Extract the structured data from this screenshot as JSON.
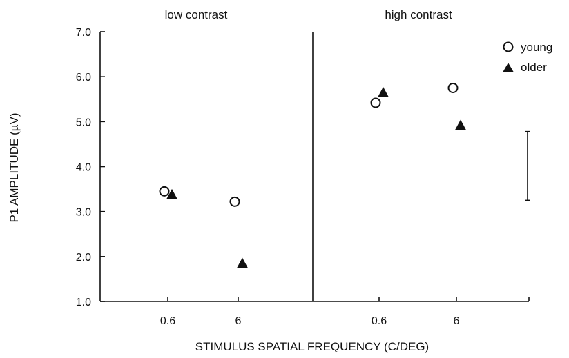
{
  "chart_data": {
    "type": "scatter",
    "xlabel": "STIMULUS SPATIAL FREQUENCY  (C/DEG)",
    "ylabel": "P1 AMPLITUDE  (µV)",
    "ylim": [
      1.0,
      7.0
    ],
    "y_ticks": [
      "1.0",
      "2.0",
      "3.0",
      "4.0",
      "5.0",
      "6.0",
      "7.0"
    ],
    "grid": false,
    "legend_placement": "top-right",
    "panels": [
      {
        "title": "low contrast",
        "categories": [
          "0.6",
          "6"
        ],
        "series": [
          {
            "name": "young",
            "marker": "open-circle",
            "values": [
              3.45,
              3.22
            ]
          },
          {
            "name": "older",
            "marker": "filled-triangle",
            "values": [
              3.38,
              1.85
            ]
          }
        ]
      },
      {
        "title": "high contrast",
        "categories": [
          "0.6",
          "6"
        ],
        "series": [
          {
            "name": "young",
            "marker": "open-circle",
            "values": [
              5.42,
              5.75
            ]
          },
          {
            "name": "older",
            "marker": "filled-triangle",
            "values": [
              5.65,
              4.92
            ]
          }
        ]
      }
    ],
    "error_bar": {
      "low": 3.25,
      "high": 4.78
    }
  }
}
